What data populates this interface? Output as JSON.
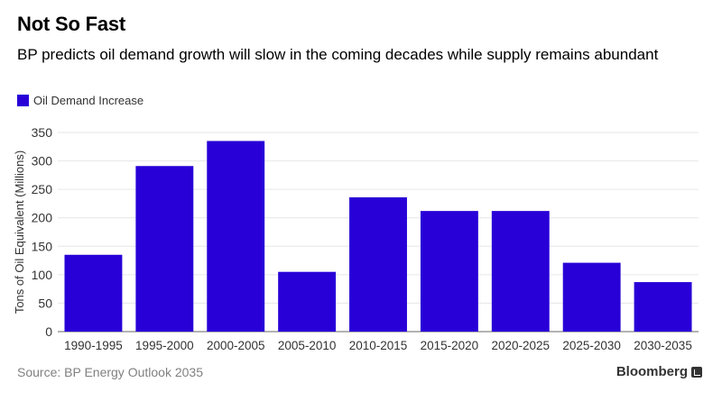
{
  "chart_data": {
    "type": "bar",
    "title": "Not So Fast",
    "subtitle": "BP predicts oil demand growth will slow in the coming decades while supply remains abundant",
    "categories": [
      "1990-1995",
      "1995-2000",
      "2000-2005",
      "2005-2010",
      "2010-2015",
      "2015-2020",
      "2020-2025",
      "2025-2030",
      "2030-2035"
    ],
    "series": [
      {
        "name": "Oil Demand Increase",
        "color": "#2800d7",
        "values": [
          135,
          291,
          335,
          105,
          236,
          212,
          212,
          121,
          87
        ]
      }
    ],
    "xlabel": "",
    "ylabel": "Tons of Oil Equivalent (Millions)",
    "ylim": [
      0,
      350
    ],
    "yticks": [
      0,
      50,
      100,
      150,
      200,
      250,
      300,
      350
    ],
    "grid": true,
    "legend_position": "top-left"
  },
  "footer": {
    "source": "Source: BP Energy Outlook 2035",
    "brand": "Bloomberg"
  }
}
